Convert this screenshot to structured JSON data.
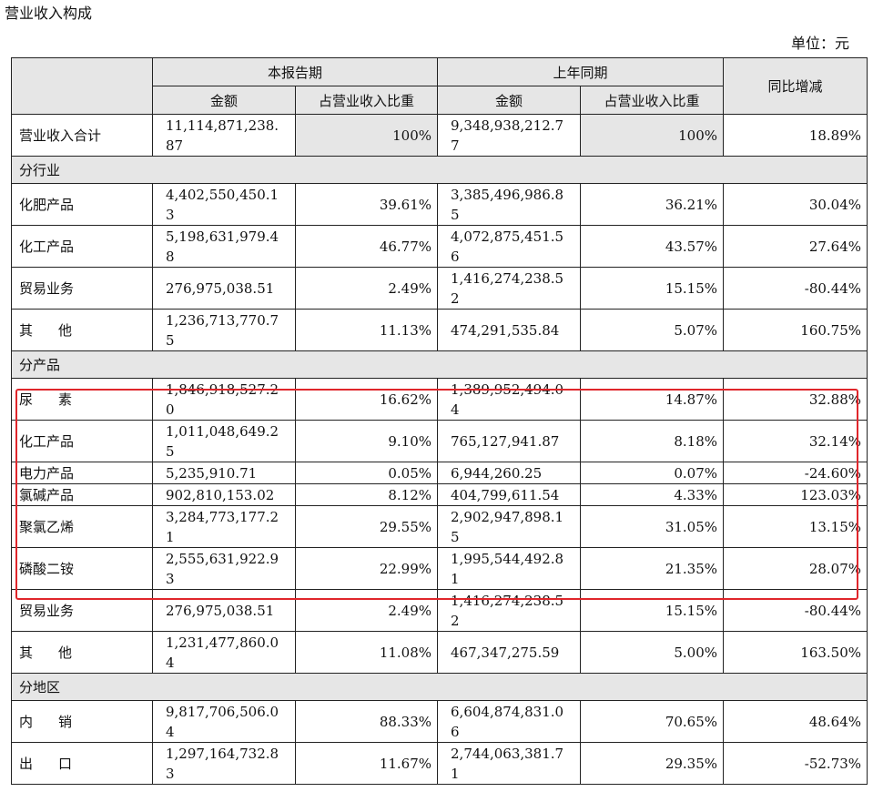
{
  "title": "营业收入构成",
  "unit": "单位：元",
  "headers": {
    "row_label": "",
    "current_period": "本报告期",
    "prior_period": "上年同期",
    "yoy_change": "同比增减",
    "amount": "金额",
    "share": "占营业收入比重"
  },
  "total": {
    "label": "营业收入合计",
    "cur_amount": "11,114,871,238.87",
    "cur_share": "100%",
    "prev_amount": "9,348,938,212.77",
    "prev_share": "100%",
    "yoy": "18.89%"
  },
  "sections": [
    {
      "title": "分行业",
      "rows": [
        {
          "label": "化肥产品",
          "cur_amount": "4,402,550,450.13",
          "cur_share": "39.61%",
          "prev_amount": "3,385,496,986.85",
          "prev_share": "36.21%",
          "yoy": "30.04%"
        },
        {
          "label": "化工产品",
          "cur_amount": "5,198,631,979.48",
          "cur_share": "46.77%",
          "prev_amount": "4,072,875,451.56",
          "prev_share": "43.57%",
          "yoy": "27.64%"
        },
        {
          "label": "贸易业务",
          "cur_amount": "276,975,038.51",
          "cur_share": "2.49%",
          "prev_amount": "1,416,274,238.52",
          "prev_share": "15.15%",
          "yoy": "-80.44%"
        },
        {
          "label": "其他",
          "cur_amount": "1,236,713,770.75",
          "cur_share": "11.13%",
          "prev_amount": "474,291,535.84",
          "prev_share": "5.07%",
          "yoy": "160.75%"
        }
      ]
    },
    {
      "title": "分产品",
      "rows": [
        {
          "label": "尿素",
          "cur_amount": "1,846,918,527.20",
          "cur_share": "16.62%",
          "prev_amount": "1,389,952,494.04",
          "prev_share": "14.87%",
          "yoy": "32.88%"
        },
        {
          "label": "化工产品",
          "cur_amount": "1,011,048,649.25",
          "cur_share": "9.10%",
          "prev_amount": "765,127,941.87",
          "prev_share": "8.18%",
          "yoy": "32.14%"
        },
        {
          "label": "电力产品",
          "cur_amount": "5,235,910.71",
          "cur_share": "0.05%",
          "prev_amount": "6,944,260.25",
          "prev_share": "0.07%",
          "yoy": "-24.60%"
        },
        {
          "label": "氯碱产品",
          "cur_amount": "902,810,153.02",
          "cur_share": "8.12%",
          "prev_amount": "404,799,611.54",
          "prev_share": "4.33%",
          "yoy": "123.03%"
        },
        {
          "label": "聚氯乙烯",
          "cur_amount": "3,284,773,177.21",
          "cur_share": "29.55%",
          "prev_amount": "2,902,947,898.15",
          "prev_share": "31.05%",
          "yoy": "13.15%"
        },
        {
          "label": "磷酸二铵",
          "cur_amount": "2,555,631,922.93",
          "cur_share": "22.99%",
          "prev_amount": "1,995,544,492.81",
          "prev_share": "21.35%",
          "yoy": "28.07%"
        },
        {
          "label": "贸易业务",
          "cur_amount": "276,975,038.51",
          "cur_share": "2.49%",
          "prev_amount": "1,416,274,238.52",
          "prev_share": "15.15%",
          "yoy": "-80.44%"
        },
        {
          "label": "其他",
          "cur_amount": "1,231,477,860.04",
          "cur_share": "11.08%",
          "prev_amount": "467,347,275.59",
          "prev_share": "5.00%",
          "yoy": "163.50%"
        }
      ]
    },
    {
      "title": "分地区",
      "rows": [
        {
          "label": "内销",
          "cur_amount": "9,817,706,506.04",
          "cur_share": "88.33%",
          "prev_amount": "6,604,874,831.06",
          "prev_share": "70.65%",
          "yoy": "48.64%"
        },
        {
          "label": "出口",
          "cur_amount": "1,297,164,732.83",
          "cur_share": "11.67%",
          "prev_amount": "2,744,063,381.71",
          "prev_share": "29.35%",
          "yoy": "-52.73%"
        }
      ]
    }
  ],
  "highlight_color": "#e0262b"
}
